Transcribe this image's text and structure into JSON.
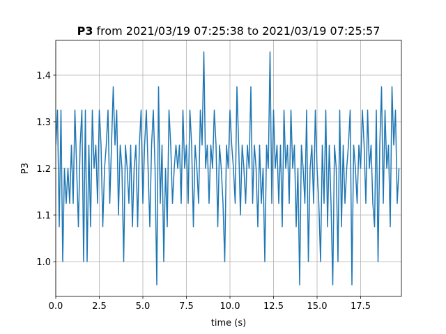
{
  "chart_data": {
    "type": "line",
    "title": [
      "P3",
      "from 2021/03/19 07:25:38 to 2021/03/19 07:25:57"
    ],
    "x_label": "time (s)",
    "y_label": "P3",
    "xlim": [
      0,
      19.84
    ],
    "ylim": [
      0.9254,
      1.4746
    ],
    "xticks": [
      {
        "value": 0,
        "label": "0.0"
      },
      2.5,
      {
        "value": 5,
        "label": "5.0"
      },
      7.5,
      {
        "value": 10,
        "label": "10.0"
      },
      12.5,
      {
        "value": 15,
        "label": "15.0"
      },
      17.5
    ],
    "yticks": [
      {
        "value": 1,
        "label": "1.0"
      },
      1.1,
      1.2,
      1.3,
      1.4
    ],
    "grid": true,
    "series": [
      {
        "name": "P3",
        "color": "#1f77b4",
        "x": [
          0,
          0.1,
          0.2,
          0.3,
          0.4,
          0.5,
          0.6,
          0.7,
          0.8,
          0.9,
          1,
          1.1,
          1.2,
          1.3,
          1.4,
          1.5,
          1.6,
          1.7,
          1.8,
          1.9,
          2,
          2.1,
          2.2,
          2.3,
          2.4,
          2.5,
          2.6,
          2.7,
          2.8,
          2.9,
          3,
          3.1,
          3.2,
          3.3,
          3.4,
          3.5,
          3.6,
          3.7,
          3.8,
          3.9,
          4,
          4.1,
          4.2,
          4.3,
          4.4,
          4.5,
          4.6,
          4.7,
          4.8,
          4.9,
          5,
          5.1,
          5.2,
          5.3,
          5.4,
          5.5,
          5.6,
          5.7,
          5.8,
          5.9,
          6,
          6.1,
          6.2,
          6.3,
          6.4,
          6.5,
          6.6,
          6.7,
          6.8,
          6.9,
          7,
          7.1,
          7.2,
          7.3,
          7.4,
          7.5,
          7.6,
          7.7,
          7.8,
          7.9,
          8,
          8.1,
          8.2,
          8.3,
          8.4,
          8.5,
          8.6,
          8.7,
          8.8,
          8.9,
          9,
          9.1,
          9.2,
          9.3,
          9.4,
          9.5,
          9.6,
          9.7,
          9.8,
          9.9,
          10,
          10.1,
          10.2,
          10.3,
          10.4,
          10.5,
          10.6,
          10.7,
          10.8,
          10.9,
          11,
          11.1,
          11.2,
          11.3,
          11.4,
          11.5,
          11.6,
          11.7,
          11.8,
          11.9,
          12,
          12.1,
          12.2,
          12.3,
          12.4,
          12.5,
          12.6,
          12.7,
          12.8,
          12.9,
          13,
          13.1,
          13.2,
          13.3,
          13.4,
          13.5,
          13.6,
          13.7,
          13.8,
          13.9,
          14,
          14.1,
          14.2,
          14.3,
          14.4,
          14.5,
          14.6,
          14.7,
          14.8,
          14.9,
          15,
          15.1,
          15.2,
          15.3,
          15.4,
          15.5,
          15.6,
          15.7,
          15.8,
          15.9,
          16,
          16.1,
          16.2,
          16.3,
          16.4,
          16.5,
          16.6,
          16.7,
          16.8,
          16.9,
          17,
          17.1,
          17.2,
          17.3,
          17.4,
          17.5,
          17.6,
          17.7,
          17.8,
          17.9,
          18,
          18.1,
          18.2,
          18.3,
          18.4,
          18.5,
          18.6,
          18.7,
          18.8,
          18.9,
          19,
          19.1,
          19.2,
          19.3,
          19.4,
          19.5,
          19.6,
          19.7
        ],
        "values": [
          1.25,
          1.325,
          1.075,
          1.325,
          1.0,
          1.2,
          1.125,
          1.2,
          1.125,
          1.25,
          1.125,
          1.325,
          1.2,
          1.075,
          1.25,
          1.325,
          1.0,
          1.325,
          1.0,
          1.25,
          1.075,
          1.325,
          1.2,
          1.25,
          1.125,
          1.325,
          1.25,
          1.075,
          1.2,
          1.25,
          1.325,
          1.125,
          1.25,
          1.375,
          1.25,
          1.325,
          1.1,
          1.25,
          1.2,
          1.0,
          1.25,
          1.2,
          1.125,
          1.25,
          1.075,
          1.2,
          1.25,
          1.075,
          1.25,
          1.325,
          1.125,
          1.25,
          1.325,
          1.2,
          1.075,
          1.25,
          1.325,
          1.2,
          0.95,
          1.375,
          1.125,
          1.25,
          1.0,
          1.2,
          1.075,
          1.325,
          1.25,
          1.125,
          1.2,
          1.25,
          1.2,
          1.25,
          1.125,
          1.325,
          1.2,
          1.25,
          1.125,
          1.325,
          1.25,
          1.075,
          1.25,
          1.2,
          1.125,
          1.325,
          1.25,
          1.45,
          1.2,
          1.25,
          1.125,
          1.25,
          1.2,
          1.325,
          1.25,
          1.075,
          1.25,
          1.2,
          1.125,
          1.0,
          1.25,
          1.2,
          1.325,
          1.25,
          1.2,
          1.125,
          1.375,
          1.25,
          1.1,
          1.25,
          1.2,
          1.125,
          1.25,
          1.2,
          1.375,
          1.125,
          1.25,
          1.2,
          1.075,
          1.25,
          1.125,
          1.2,
          1.0,
          1.25,
          1.2,
          1.45,
          1.125,
          1.325,
          1.2,
          1.25,
          1.125,
          1.25,
          1.075,
          1.325,
          1.2,
          1.25,
          1.125,
          1.325,
          1.2,
          1.25,
          1.075,
          1.2,
          0.95,
          1.25,
          1.2,
          1.125,
          1.325,
          1.0,
          1.2,
          1.25,
          1.125,
          1.325,
          1.2,
          1.125,
          1.0,
          1.25,
          1.125,
          1.325,
          1.075,
          1.25,
          1.125,
          0.95,
          1.25,
          1.2,
          1.0,
          1.325,
          1.075,
          1.25,
          1.125,
          1.2,
          1.25,
          1.325,
          0.95,
          1.25,
          1.2,
          1.125,
          1.25,
          1.2,
          1.325,
          1.25,
          1.125,
          1.325,
          1.2,
          1.25,
          1.125,
          1.075,
          1.325,
          1.0,
          1.25,
          1.375,
          1.125,
          1.325,
          1.2,
          1.25,
          1.075,
          1.375,
          1.25,
          1.325,
          1.125,
          1.2
        ]
      }
    ]
  }
}
